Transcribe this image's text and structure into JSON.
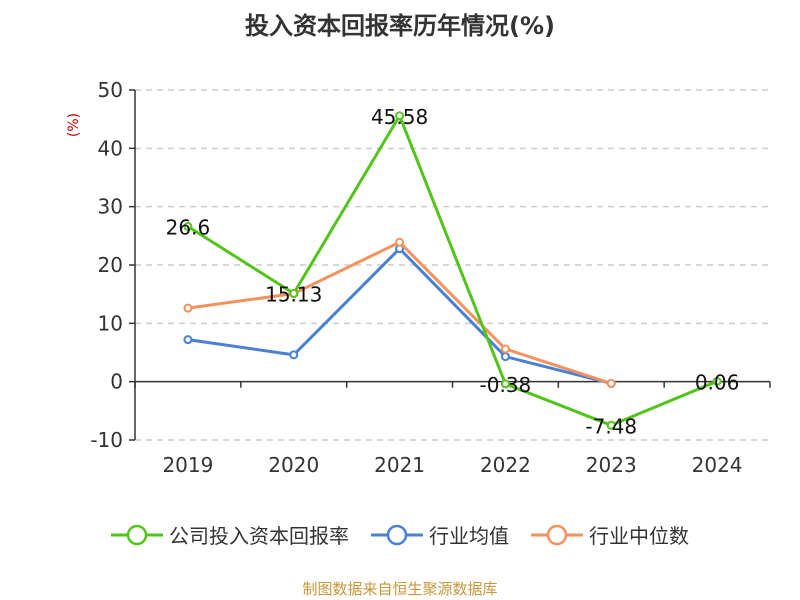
{
  "title": "投入资本回报率历年情况(%)",
  "source": "制图数据来自恒生聚源数据库",
  "chart_data": {
    "type": "line",
    "categories": [
      "2019",
      "2020",
      "2021",
      "2022",
      "2023",
      "2024"
    ],
    "y_unit": "(%)",
    "ylim": [
      -10,
      50
    ],
    "yticks": [
      -10,
      0,
      10,
      20,
      30,
      40,
      50
    ],
    "grid": true,
    "legend_position": "bottom",
    "series": [
      {
        "name": "公司投入资本回报率",
        "color": "#52c41a",
        "values": [
          26.6,
          15.13,
          45.58,
          -0.38,
          -7.48,
          0.06
        ],
        "labels": [
          "26.6",
          "15.13",
          "45.58",
          "-0.38",
          "-7.48",
          "0.06"
        ]
      },
      {
        "name": "行业均值",
        "color": "#4a7fd6",
        "values": [
          7.2,
          4.6,
          22.8,
          4.3,
          -0.3,
          null
        ]
      },
      {
        "name": "行业中位数",
        "color": "#f4915e",
        "values": [
          12.6,
          15.1,
          23.9,
          5.6,
          -0.3,
          null
        ]
      }
    ]
  }
}
